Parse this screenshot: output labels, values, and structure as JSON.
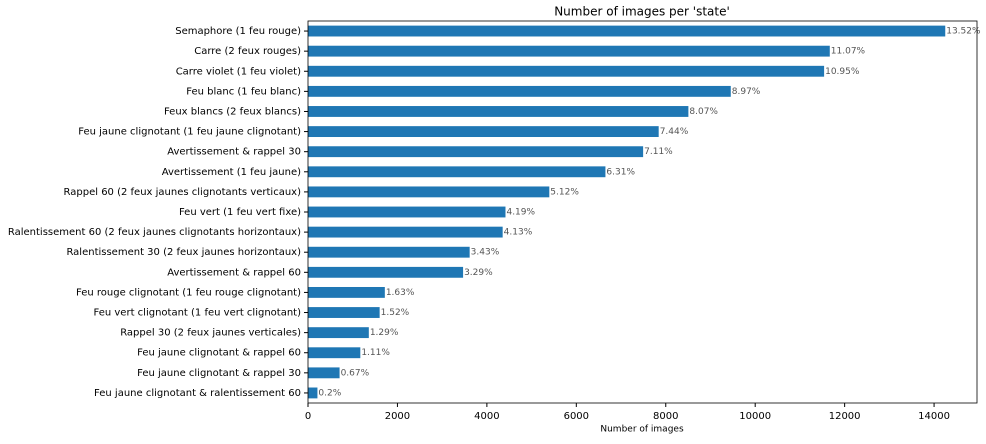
{
  "chart_data": {
    "type": "barh",
    "title": "Number of images per 'state'",
    "xlabel": "Number of images",
    "categories": [
      "Semaphore (1 feu rouge)",
      "Carre (2 feux rouges)",
      "Carre violet (1 feu violet)",
      "Feu blanc (1 feu blanc)",
      "Feux blancs (2 feux blancs)",
      "Feu jaune clignotant (1 feu jaune clignotant)",
      "Avertissement & rappel 30",
      "Avertissement (1 feu jaune)",
      "Rappel 60 (2 feux jaunes clignotants verticaux)",
      "Feu vert (1 feu vert fixe)",
      "Ralentissement 60 (2 feux jaunes clignotants horizontaux)",
      "Ralentissement 30 (2 feux jaunes horizontaux)",
      "Avertissement & rappel 60",
      "Feu rouge clignotant (1 feu rouge clignotant)",
      "Feu vert clignotant (1 feu vert clignotant)",
      "Rappel 30 (2 feux jaunes verticales)",
      "Feu jaune clignotant & rappel 60",
      "Feu jaune clignotant & rappel 30",
      "Feu jaune clignotant & ralentissement 60"
    ],
    "values": [
      14250,
      11668,
      11541,
      9454,
      8506,
      7842,
      7494,
      6651,
      5396,
      4416,
      4353,
      3615,
      3468,
      1718,
      1602,
      1360,
      1170,
      706,
      211
    ],
    "value_labels": [
      "13.52%",
      "11.07%",
      "10.95%",
      "8.97%",
      "8.07%",
      "7.44%",
      "7.11%",
      "6.31%",
      "5.12%",
      "4.19%",
      "4.13%",
      "3.43%",
      "3.29%",
      "1.63%",
      "1.52%",
      "1.29%",
      "1.11%",
      "0.67%",
      "0.2%"
    ],
    "color": "#1f77b4",
    "xlim": [
      0,
      14960
    ],
    "xticks": [
      0,
      2000,
      4000,
      6000,
      8000,
      10000,
      12000,
      14000
    ]
  }
}
